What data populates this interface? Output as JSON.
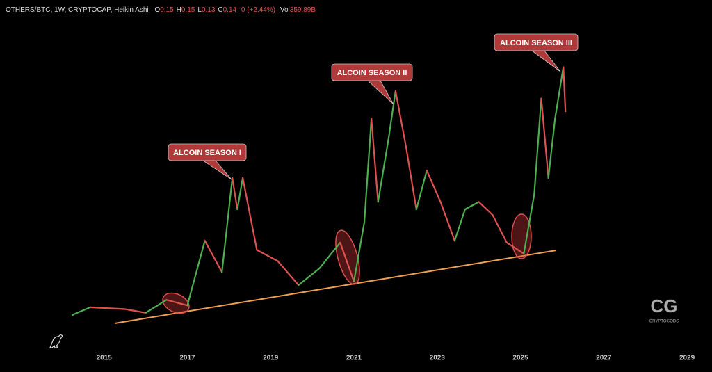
{
  "header": {
    "symbol": "OTHERS/BTC, 1W, CRYPTOCAP, Heikin Ashi",
    "ohlc": [
      {
        "key": "O",
        "value": 0.15
      },
      {
        "key": "H",
        "value": 0.15
      },
      {
        "key": "L",
        "value": 0.13
      },
      {
        "key": "C",
        "value": 0.14
      }
    ],
    "change": "0 (+2.44%)",
    "volume_key": "Vol",
    "volume": "359.89B"
  },
  "watermark": "CRYPTOGODS",
  "chart_data": {
    "type": "line",
    "x": [
      2014.25,
      2014.67,
      2015.5,
      2016.0,
      2016.5,
      2017.0,
      2017.42,
      2017.83,
      2018.08,
      2018.2,
      2018.33,
      2018.67,
      2019.17,
      2019.67,
      2020.17,
      2020.67,
      2021.0,
      2021.25,
      2021.42,
      2021.58,
      2021.83,
      2022.0,
      2022.25,
      2022.5,
      2022.75,
      2023.08,
      2023.42,
      2023.67,
      2024.0,
      2024.33,
      2024.67,
      2025.08,
      2025.33,
      2025.5,
      2025.67,
      2025.83,
      2026.03,
      2026.08
    ],
    "values": [
      0.016,
      0.02,
      0.019,
      0.017,
      0.024,
      0.021,
      0.056,
      0.039,
      0.09,
      0.073,
      0.09,
      0.051,
      0.045,
      0.032,
      0.041,
      0.055,
      0.034,
      0.066,
      0.122,
      0.077,
      0.111,
      0.137,
      0.107,
      0.073,
      0.094,
      0.077,
      0.056,
      0.073,
      0.077,
      0.07,
      0.055,
      0.049,
      0.081,
      0.133,
      0.09,
      0.122,
      0.15,
      0.126
    ],
    "up_color": "#4caf50",
    "down_color": "#e0524f",
    "xlim": [
      2012.5,
      2029.6
    ],
    "ylim": [
      0,
      0.175
    ],
    "xticks": [
      2015,
      2017,
      2019,
      2021,
      2023,
      2025,
      2027,
      2029
    ],
    "annotations": [
      "ALCOIN SEASON I",
      "ALCOIN SEASON II",
      "ALCOIN SEASON III"
    ]
  }
}
